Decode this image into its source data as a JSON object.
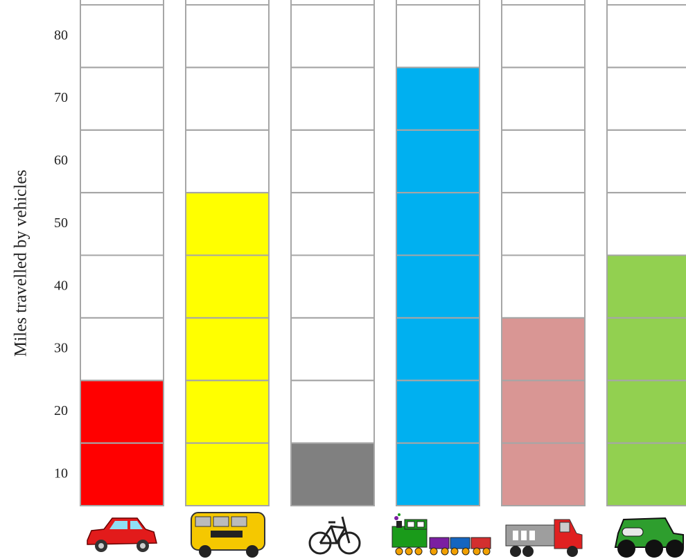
{
  "chart_data": {
    "type": "bar",
    "ylabel": "Miles travelled by vehicles",
    "categories": [
      null,
      null,
      null,
      null,
      null,
      null
    ],
    "values": [
      25,
      55,
      15,
      75,
      35,
      45
    ],
    "colors": [
      "#ff0000",
      "#ffff00",
      "#808080",
      "#00b0f0",
      "#d99694",
      "#92d050"
    ],
    "ylim": [
      5,
      85
    ],
    "yticks": [
      10,
      20,
      30,
      40,
      50,
      60,
      70,
      80
    ],
    "grid": true
  }
}
